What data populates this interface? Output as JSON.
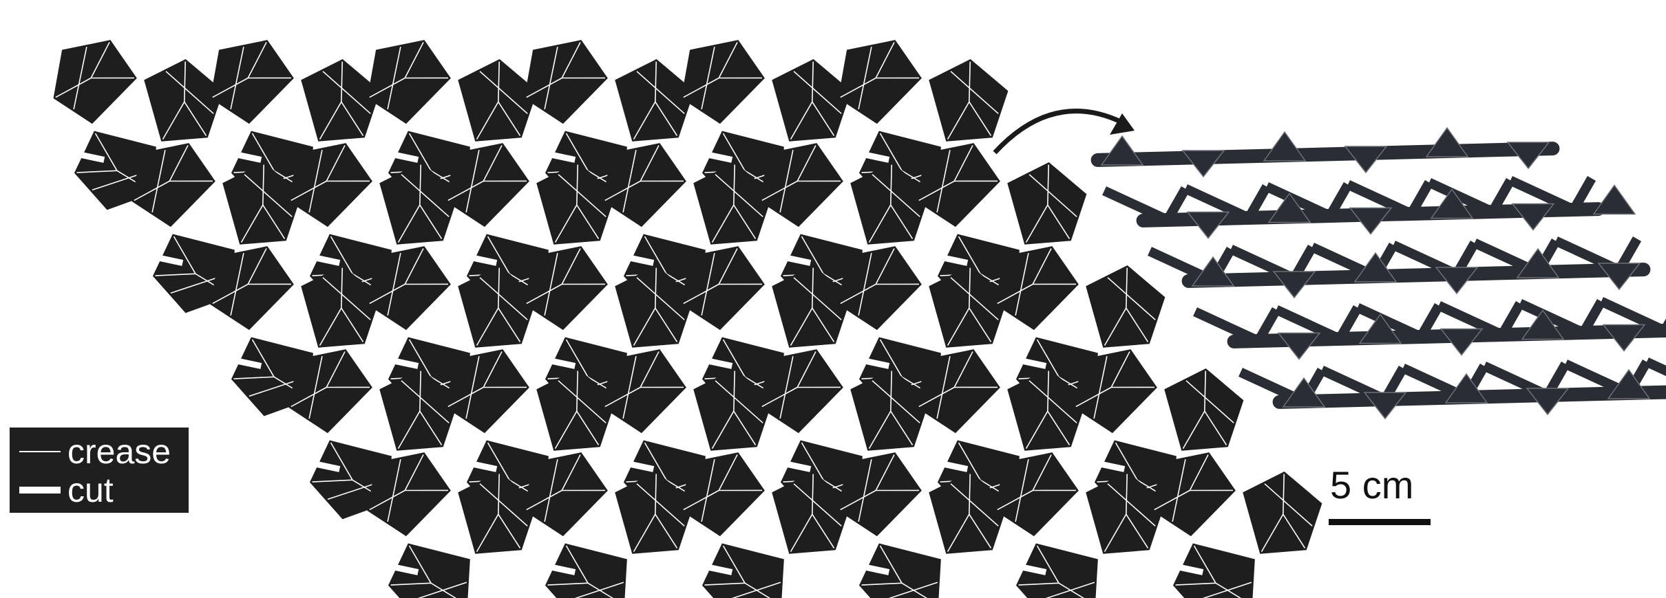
{
  "legend": {
    "crease_label": "crease",
    "cut_label": "cut"
  },
  "scale": {
    "label": "5 cm"
  },
  "colors": {
    "sheet": "#1e1e1e",
    "crease": "#ffffff",
    "folded_lattice": "#2a2d33",
    "shadow": "#6e7079",
    "arrow": "#1a1a1a"
  },
  "pattern": {
    "unfolded_rows": 5,
    "unfolded_cols": 6,
    "folded_rows": 4,
    "folded_cols": 5
  }
}
